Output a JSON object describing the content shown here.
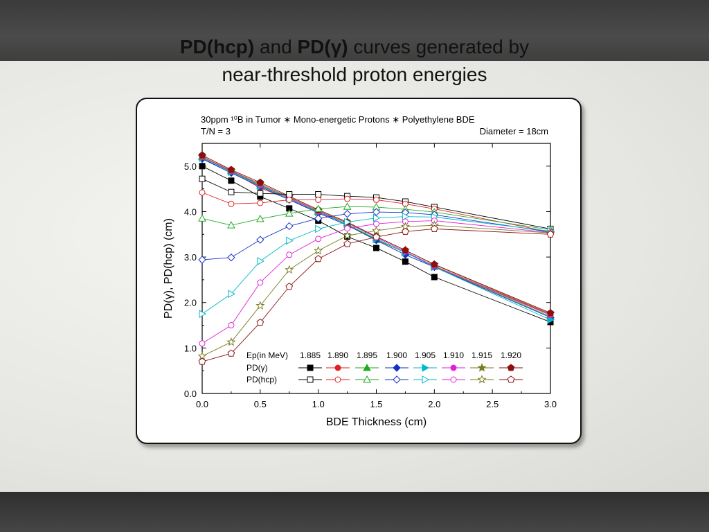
{
  "slide": {
    "title_part1": "PD(hcp)",
    "title_and": " and ",
    "title_part2": "PD(γ)",
    "title_part3": " curves generated by",
    "title_line2": "near-threshold proton energies"
  },
  "chart_data": {
    "type": "line",
    "annotations": {
      "line1_left": "30ppm ¹⁰B in Tumor  ∗  Mono-energetic Protons  ∗  Polyethylene BDE",
      "line2_left": "T/N = 3",
      "line2_right": "Diameter = 18cm"
    },
    "xlabel": "BDE Thickness (cm)",
    "ylabel": "PD(γ), PD(hcp) (cm)",
    "xlim": [
      0,
      3
    ],
    "ylim": [
      0,
      5.5
    ],
    "xticks": [
      "0.0",
      "0.5",
      "1.0",
      "1.5",
      "2.0",
      "2.5",
      "3.0"
    ],
    "yticks": [
      "0.0",
      "1.0",
      "2.0",
      "3.0",
      "4.0",
      "5.0"
    ],
    "legend": {
      "header_label": "Ep(in MeV)",
      "energies": [
        "1.885",
        "1.890",
        "1.895",
        "1.900",
        "1.905",
        "1.910",
        "1.915",
        "1.920"
      ],
      "row_gamma": "PD(γ)",
      "row_hcp": "PD(hcp)",
      "placement": "bottom-right"
    },
    "x": [
      0,
      0.25,
      0.5,
      0.75,
      1.0,
      1.25,
      1.5,
      1.75,
      2.0,
      3.0
    ],
    "series": [
      {
        "name": "1.885",
        "group": "gamma",
        "color": "#000000",
        "marker": "square",
        "values": [
          5.0,
          4.68,
          4.33,
          4.07,
          3.8,
          3.45,
          3.2,
          2.9,
          2.56,
          1.57
        ]
      },
      {
        "name": "1.890",
        "group": "gamma",
        "color": "#e02020",
        "marker": "circle",
        "values": [
          5.17,
          4.88,
          4.52,
          4.27,
          3.97,
          3.7,
          3.38,
          3.1,
          2.8,
          1.74
        ]
      },
      {
        "name": "1.895",
        "group": "gamma",
        "color": "#22aa22",
        "marker": "triangle",
        "values": [
          5.2,
          4.89,
          4.57,
          4.3,
          4.0,
          3.72,
          3.38,
          3.1,
          2.79,
          1.69
        ]
      },
      {
        "name": "1.900",
        "group": "gamma",
        "color": "#1530c8",
        "marker": "diamond",
        "values": [
          5.16,
          4.85,
          4.55,
          4.26,
          3.97,
          3.7,
          3.37,
          3.05,
          2.78,
          1.67
        ]
      },
      {
        "name": "1.905",
        "group": "gamma",
        "color": "#00b8c8",
        "marker": "triangle-right",
        "values": [
          5.18,
          4.87,
          4.56,
          4.28,
          3.99,
          3.72,
          3.4,
          3.1,
          2.78,
          1.62
        ]
      },
      {
        "name": "1.910",
        "group": "gamma",
        "color": "#e020d8",
        "marker": "circle",
        "values": [
          5.2,
          4.89,
          4.59,
          4.3,
          4.0,
          3.75,
          3.43,
          3.12,
          2.8,
          1.72
        ]
      },
      {
        "name": "1.915",
        "group": "gamma",
        "color": "#7a7a20",
        "marker": "star",
        "values": [
          5.21,
          4.9,
          4.61,
          4.32,
          4.02,
          3.75,
          3.45,
          3.15,
          2.83,
          1.75
        ]
      },
      {
        "name": "1.920",
        "group": "gamma",
        "color": "#8b1010",
        "marker": "pentagon",
        "values": [
          5.24,
          4.92,
          4.64,
          4.34,
          4.04,
          3.77,
          3.45,
          3.15,
          2.84,
          1.77
        ]
      },
      {
        "name": "1.885",
        "group": "hcp",
        "color": "#000000",
        "marker": "square",
        "values": [
          4.72,
          4.43,
          4.4,
          4.38,
          4.38,
          4.34,
          4.31,
          4.22,
          4.1,
          3.62
        ]
      },
      {
        "name": "1.890",
        "group": "hcp",
        "color": "#e02020",
        "marker": "circle",
        "values": [
          4.42,
          4.17,
          4.19,
          4.26,
          4.26,
          4.28,
          4.26,
          4.17,
          4.06,
          3.55
        ]
      },
      {
        "name": "1.895",
        "group": "hcp",
        "color": "#22aa22",
        "marker": "triangle",
        "values": [
          3.85,
          3.7,
          3.84,
          3.96,
          4.06,
          4.11,
          4.1,
          4.05,
          3.99,
          3.6
        ]
      },
      {
        "name": "1.900",
        "group": "hcp",
        "color": "#1530c8",
        "marker": "diamond",
        "values": [
          2.94,
          2.99,
          3.38,
          3.68,
          3.85,
          3.95,
          3.99,
          3.98,
          3.93,
          3.55
        ]
      },
      {
        "name": "1.905",
        "group": "hcp",
        "color": "#00b8c8",
        "marker": "triangle-right",
        "values": [
          1.75,
          2.19,
          2.91,
          3.36,
          3.62,
          3.77,
          3.86,
          3.89,
          3.88,
          3.57
        ]
      },
      {
        "name": "1.910",
        "group": "hcp",
        "color": "#e020d8",
        "marker": "circle",
        "values": [
          1.1,
          1.5,
          2.44,
          3.05,
          3.4,
          3.63,
          3.73,
          3.78,
          3.8,
          3.54
        ]
      },
      {
        "name": "1.915",
        "group": "hcp",
        "color": "#7a7a20",
        "marker": "star",
        "values": [
          0.82,
          1.13,
          1.93,
          2.72,
          3.14,
          3.47,
          3.58,
          3.67,
          3.7,
          3.53
        ]
      },
      {
        "name": "1.920",
        "group": "hcp",
        "color": "#8b1010",
        "marker": "pentagon",
        "values": [
          0.7,
          0.88,
          1.56,
          2.35,
          2.96,
          3.29,
          3.44,
          3.56,
          3.62,
          3.5
        ]
      }
    ]
  }
}
